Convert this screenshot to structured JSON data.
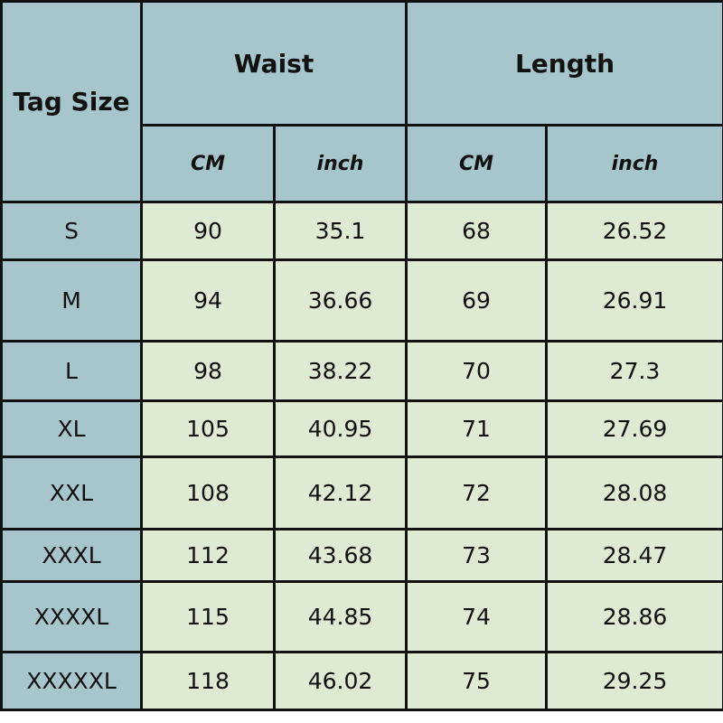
{
  "header": {
    "tag_size": "Tag Size",
    "waist": "Waist",
    "length": "Length",
    "waist_cm": "CM",
    "waist_inch": "inch",
    "length_cm": "CM",
    "length_inch": "inch"
  },
  "colors": {
    "header_bg": "#a7c6cc",
    "cell_bg": "#deead3",
    "border": "#111111"
  },
  "rows": [
    {
      "size": "S",
      "waist_cm": "90",
      "waist_inch": "35.1",
      "length_cm": "68",
      "length_inch": "26.52"
    },
    {
      "size": "M",
      "waist_cm": "94",
      "waist_inch": "36.66",
      "length_cm": "69",
      "length_inch": "26.91"
    },
    {
      "size": "L",
      "waist_cm": "98",
      "waist_inch": "38.22",
      "length_cm": "70",
      "length_inch": "27.3"
    },
    {
      "size": "XL",
      "waist_cm": "105",
      "waist_inch": "40.95",
      "length_cm": "71",
      "length_inch": "27.69"
    },
    {
      "size": "XXL",
      "waist_cm": "108",
      "waist_inch": "42.12",
      "length_cm": "72",
      "length_inch": "28.08"
    },
    {
      "size": "XXXL",
      "waist_cm": "112",
      "waist_inch": "43.68",
      "length_cm": "73",
      "length_inch": "28.47"
    },
    {
      "size": "XXXXL",
      "waist_cm": "115",
      "waist_inch": "44.85",
      "length_cm": "74",
      "length_inch": "28.86"
    },
    {
      "size": "XXXXXL",
      "waist_cm": "118",
      "waist_inch": "46.02",
      "length_cm": "75",
      "length_inch": "29.25"
    }
  ]
}
